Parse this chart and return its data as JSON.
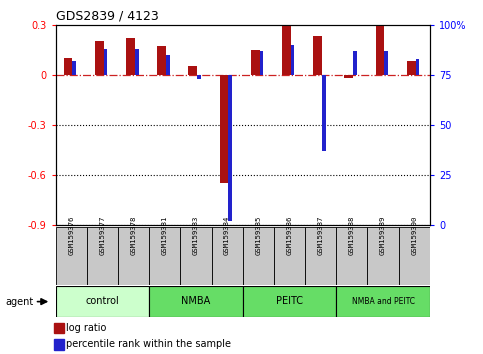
{
  "title": "GDS2839 / 4123",
  "samples": [
    "GSM159376",
    "GSM159377",
    "GSM159378",
    "GSM159381",
    "GSM159383",
    "GSM159384",
    "GSM159385",
    "GSM159386",
    "GSM159387",
    "GSM159388",
    "GSM159389",
    "GSM159390"
  ],
  "log_ratio": [
    0.1,
    0.2,
    0.22,
    0.17,
    0.05,
    -0.65,
    0.15,
    0.295,
    0.235,
    -0.02,
    0.295,
    0.08
  ],
  "percentile_rank": [
    82,
    88,
    88,
    85,
    73,
    2,
    87,
    90,
    37,
    87,
    87,
    83
  ],
  "groups": [
    {
      "label": "control",
      "start": 0,
      "end": 3,
      "color": "#ccffcc"
    },
    {
      "label": "NMBA",
      "start": 3,
      "end": 6,
      "color": "#66dd66"
    },
    {
      "label": "PEITC",
      "start": 6,
      "end": 9,
      "color": "#66dd66"
    },
    {
      "label": "NMBA and PEITC",
      "start": 9,
      "end": 12,
      "color": "#66dd66"
    }
  ],
  "ylim_left": [
    -0.9,
    0.3
  ],
  "ylim_right": [
    0,
    100
  ],
  "bar_color_red": "#aa1111",
  "bar_color_blue": "#2222cc",
  "dashed_line_color": "#cc2222",
  "legend_red": "log ratio",
  "legend_blue": "percentile rank within the sample",
  "sample_box_color": "#c8c8c8",
  "yticks_left": [
    0.3,
    0.0,
    -0.3,
    -0.6,
    -0.9
  ],
  "yticks_right": [
    0,
    25,
    50,
    75,
    100
  ],
  "ytick_labels_left": [
    "0.3",
    "0",
    "-0.3",
    "-0.6",
    "-0.9"
  ],
  "ytick_labels_right": [
    "0",
    "25",
    "50",
    "75",
    "100%"
  ]
}
